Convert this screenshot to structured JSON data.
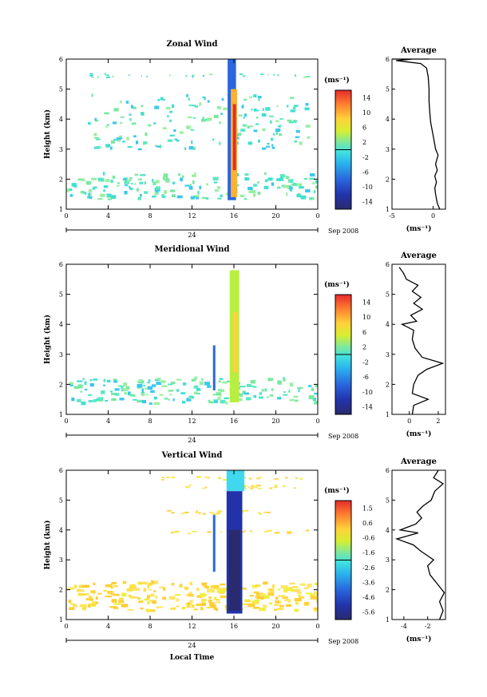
{
  "chart_data": [
    {
      "type": "heatmap",
      "title": "Zonal Wind",
      "ylabel": "Height (km)",
      "unit": "(ms⁻¹)",
      "xlim": [
        0,
        24
      ],
      "ylim": [
        1,
        6
      ],
      "x_ticks": [
        "0",
        "4",
        "8",
        "12",
        "16",
        "20",
        "0"
      ],
      "y_ticks": [
        "1",
        "2",
        "3",
        "4",
        "5",
        "6"
      ],
      "date_label": "24",
      "month_label": "Sep 2008",
      "colorbar": {
        "min": -16,
        "max": 16,
        "ticks": [
          "14",
          "10",
          "6",
          "2",
          "-2",
          "-6",
          "-10",
          "-14"
        ]
      },
      "average": {
        "title": "Average",
        "xlabel": "(ms⁻¹)",
        "xlim": [
          -5,
          1.5
        ],
        "x_ticks": [
          "-5",
          "0"
        ],
        "y_ticks": [
          "1",
          "2",
          "3",
          "4",
          "5",
          "6"
        ],
        "profile": [
          [
            0.8,
            1.0
          ],
          [
            0.5,
            1.2
          ],
          [
            0.3,
            1.5
          ],
          [
            0.2,
            1.7
          ],
          [
            0.4,
            1.9
          ],
          [
            0.2,
            2.1
          ],
          [
            0.5,
            2.3
          ],
          [
            0.3,
            2.5
          ],
          [
            0.6,
            2.8
          ],
          [
            0.3,
            3.0
          ],
          [
            0.1,
            3.3
          ],
          [
            -0.1,
            3.6
          ],
          [
            -0.3,
            3.9
          ],
          [
            -0.4,
            4.2
          ],
          [
            -0.5,
            4.6
          ],
          [
            -0.5,
            5.0
          ],
          [
            -0.6,
            5.4
          ],
          [
            -0.8,
            5.7
          ],
          [
            -1.5,
            5.85
          ],
          [
            -4.5,
            5.95
          ],
          [
            -2.5,
            6.1
          ],
          [
            -0.5,
            6.2
          ],
          [
            -4.8,
            6.35
          ],
          [
            -5.0,
            6.5
          ]
        ]
      }
    },
    {
      "type": "heatmap",
      "title": "Meridional Wind",
      "ylabel": "Height (km)",
      "unit": "(ms⁻¹)",
      "xlim": [
        0,
        24
      ],
      "ylim": [
        1,
        6
      ],
      "x_ticks": [
        "0",
        "4",
        "8",
        "12",
        "16",
        "20",
        "0"
      ],
      "y_ticks": [
        "1",
        "2",
        "3",
        "4",
        "5",
        "6"
      ],
      "date_label": "24",
      "month_label": "Sep 2008",
      "colorbar": {
        "min": -16,
        "max": 16,
        "ticks": [
          "14",
          "10",
          "6",
          "2",
          "-2",
          "-6",
          "-10",
          "-14"
        ]
      },
      "average": {
        "title": "Average",
        "xlabel": "(ms⁻¹)",
        "xlim": [
          -1.2,
          2.5
        ],
        "x_ticks": [
          "0",
          "2"
        ],
        "y_ticks": [
          "1",
          "2",
          "3",
          "4",
          "5",
          "6"
        ],
        "profile": [
          [
            0.2,
            1.0
          ],
          [
            0.3,
            1.3
          ],
          [
            1.3,
            1.5
          ],
          [
            0.2,
            1.7
          ],
          [
            0.3,
            2.0
          ],
          [
            0.6,
            2.3
          ],
          [
            1.2,
            2.5
          ],
          [
            2.3,
            2.7
          ],
          [
            0.9,
            2.9
          ],
          [
            0.4,
            3.2
          ],
          [
            0.2,
            3.5
          ],
          [
            0.3,
            3.8
          ],
          [
            -0.5,
            4.0
          ],
          [
            0.5,
            4.1
          ],
          [
            0.1,
            4.3
          ],
          [
            0.9,
            4.5
          ],
          [
            0.3,
            4.7
          ],
          [
            0.8,
            4.9
          ],
          [
            0.2,
            5.1
          ],
          [
            0.6,
            5.3
          ],
          [
            -0.2,
            5.5
          ],
          [
            -0.4,
            5.7
          ],
          [
            -0.7,
            5.9
          ]
        ]
      }
    },
    {
      "type": "heatmap",
      "title": "Vertical Wind",
      "ylabel": "Height (km)",
      "xlabel": "Local Time",
      "unit": "(ms⁻¹)",
      "xlim": [
        0,
        24
      ],
      "ylim": [
        1,
        6
      ],
      "x_ticks": [
        "0",
        "4",
        "8",
        "12",
        "16",
        "20",
        "0"
      ],
      "y_ticks": [
        "1",
        "2",
        "3",
        "4",
        "5",
        "6"
      ],
      "date_label": "24",
      "month_label": "Sep 2008",
      "colorbar": {
        "min": -6.5,
        "max": 2.5,
        "ticks": [
          "1.5",
          "0.6",
          "-0.6",
          "-1.6",
          "-2.6",
          "-3.6",
          "-4.6",
          "-5.6"
        ]
      },
      "average": {
        "title": "Average",
        "xlabel": "(ms⁻¹)",
        "xlim": [
          -5,
          -0.5
        ],
        "x_ticks": [
          "-4",
          "-2"
        ],
        "y_ticks": [
          "1",
          "2",
          "3",
          "4",
          "5",
          "6"
        ],
        "profile": [
          [
            -1.0,
            1.0
          ],
          [
            -0.7,
            1.3
          ],
          [
            -1.0,
            1.6
          ],
          [
            -0.6,
            1.9
          ],
          [
            -1.2,
            2.2
          ],
          [
            -1.8,
            2.5
          ],
          [
            -2.0,
            2.8
          ],
          [
            -1.5,
            3.0
          ],
          [
            -2.6,
            3.3
          ],
          [
            -3.2,
            3.5
          ],
          [
            -4.6,
            3.7
          ],
          [
            -2.8,
            3.9
          ],
          [
            -4.3,
            4.0
          ],
          [
            -3.0,
            4.2
          ],
          [
            -2.5,
            4.4
          ],
          [
            -2.9,
            4.6
          ],
          [
            -2.4,
            4.8
          ],
          [
            -1.7,
            5.0
          ],
          [
            -1.4,
            5.3
          ],
          [
            -0.7,
            5.55
          ],
          [
            -1.5,
            5.75
          ],
          [
            -1.1,
            6.0
          ]
        ]
      }
    }
  ]
}
